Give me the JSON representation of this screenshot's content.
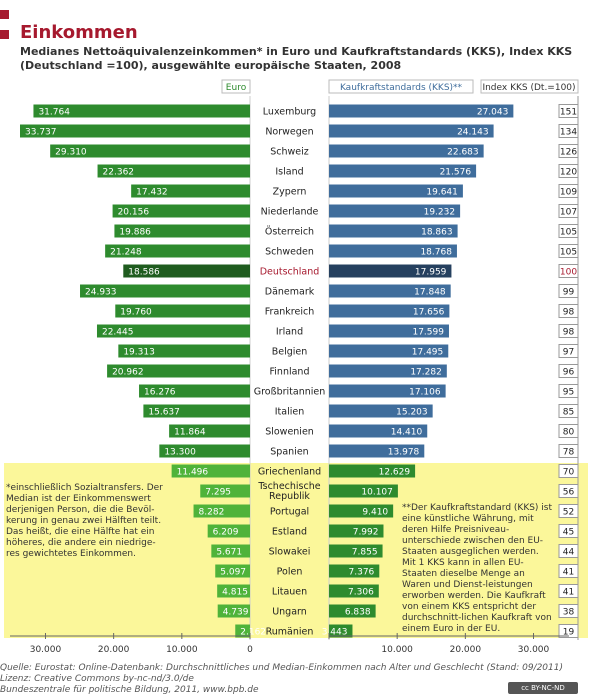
{
  "title": "Einkommen",
  "subtitle": "Medianes Nettoäquivalenzeinkommen* in Euro und Kaufkraftstandards (KKS), Index KKS (Deutschland =100), ausgewählte europäische Staaten, 2008",
  "colors": {
    "title": "#a6192e",
    "euro_bar": "#2e8b2e",
    "euro_bar_highlight": "#1f5c1f",
    "euro_bar_light": "#4fb33a",
    "kks_bar": "#3f6d9c",
    "kks_bar_highlight": "#25405f",
    "kks_bar_light": "#2e8b2e",
    "highlight_label": "#a6192e",
    "yellow_region": "#fbf79a"
  },
  "chart_data": {
    "type": "bar",
    "orientation": "horizontal-diverging",
    "highlight_row": "Deutschland",
    "columns": {
      "left": "Euro",
      "right": "Kaufkraftstandards (KKS)**",
      "index": "Index KKS (Dt.=100)"
    },
    "categories": [
      "Luxemburg",
      "Norwegen",
      "Schweiz",
      "Island",
      "Zypern",
      "Niederlande",
      "Österreich",
      "Schweden",
      "Deutschland",
      "Dänemark",
      "Frankreich",
      "Irland",
      "Belgien",
      "Finnland",
      "Großbritannien",
      "Italien",
      "Slowenien",
      "Spanien",
      "Griechenland",
      "Tschechische Republik",
      "Portugal",
      "Estland",
      "Slowakei",
      "Polen",
      "Litauen",
      "Ungarn",
      "Rumänien"
    ],
    "series": [
      {
        "name": "Euro",
        "side": "left",
        "values": [
          31764,
          33737,
          29310,
          22362,
          17432,
          20156,
          19886,
          21248,
          18586,
          24933,
          19760,
          22445,
          19313,
          20962,
          16276,
          15637,
          11864,
          13300,
          11496,
          7295,
          8282,
          6209,
          5671,
          5097,
          4815,
          4739,
          2162
        ],
        "labels": [
          "31.764",
          "33.737",
          "29.310",
          "22.362",
          "17.432",
          "20.156",
          "19.886",
          "21.248",
          "18.586",
          "24.933",
          "19.760",
          "22.445",
          "19.313",
          "20.962",
          "16.276",
          "15.637",
          "11.864",
          "13.300",
          "11.496",
          "7.295",
          "8.282",
          "6.209",
          "5.671",
          "5.097",
          "4.815",
          "4.739",
          "2.162"
        ]
      },
      {
        "name": "Kaufkraftstandards (KKS)",
        "side": "right",
        "values": [
          27043,
          24143,
          22683,
          21576,
          19641,
          19232,
          18863,
          18768,
          17959,
          17848,
          17656,
          17599,
          17495,
          17282,
          17106,
          15203,
          14410,
          13978,
          12629,
          10107,
          9410,
          7992,
          7855,
          7376,
          7306,
          6838,
          3443
        ],
        "labels": [
          "27.043",
          "24.143",
          "22.683",
          "21.576",
          "19.641",
          "19.232",
          "18.863",
          "18.768",
          "17.959",
          "17.848",
          "17.656",
          "17.599",
          "17.495",
          "17.282",
          "17.106",
          "15.203",
          "14.410",
          "13.978",
          "12.629",
          "10.107",
          "9.410",
          "7.992",
          "7.855",
          "7.376",
          "7.306",
          "6.838",
          "3.443"
        ]
      },
      {
        "name": "Index KKS (Dt.=100)",
        "side": "index",
        "values": [
          151,
          134,
          126,
          120,
          109,
          107,
          105,
          105,
          100,
          99,
          98,
          98,
          97,
          96,
          95,
          85,
          80,
          78,
          70,
          56,
          52,
          45,
          44,
          41,
          41,
          38,
          19
        ]
      }
    ],
    "axis_ticks": {
      "left": [
        "30.000",
        "20.000",
        "10.000",
        "0"
      ],
      "right": [
        "10.000",
        "20.000",
        "30.000"
      ]
    },
    "axis_range": [
      0,
      35000
    ]
  },
  "notes": {
    "left": "*einschließlich Sozialtransfers. Der Median ist der Einkommenswert derjenigen Person, die die Bevöl-kerung in genau zwei Hälften teilt. Das heißt, die eine Hälfte hat ein höheres, die andere ein niedrige-res gewichtetes Einkommen.",
    "right": "**Der Kaufkraftstandard (KKS) ist eine künstliche Währung, mit deren Hilfe Preisniveau-unterschiede zwischen den EU-Staaten ausgeglichen werden. Mit 1 KKS kann in allen EU-Staaten dieselbe Menge an Waren und Dienst-leistungen erworben werden. Die Kaufkraft von einem KKS entspricht der durchschnitt-lichen Kaufkraft von einem Euro in der EU."
  },
  "source": {
    "line1": "Quelle: Eurostat: Online-Datenbank: Durchschnittliches und Median-Einkommen nach Alter und Geschlecht (Stand: 09/2011)",
    "line2": "Lizenz: Creative Commons by-nc-nd/3.0/de",
    "line3": "Bundeszentrale für politische Bildung, 2011, www.bpb.de",
    "license_badge": "cc BY-NC-ND"
  }
}
